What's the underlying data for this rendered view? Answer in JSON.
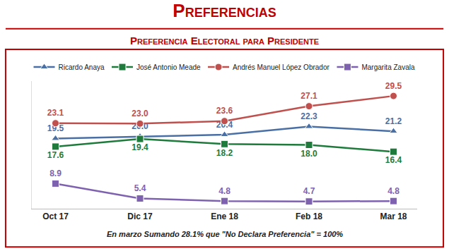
{
  "chart_data": {
    "type": "line",
    "title": "Preferencias",
    "subtitle": "Preferencia Electoral para Presidente",
    "categories": [
      "Oct 17",
      "Dic 17",
      "Ene 18",
      "Feb 18",
      "Mar 18"
    ],
    "series": [
      {
        "name": "Ricardo Anaya",
        "color": "#4a6fa5",
        "marker": "triangle-up",
        "line_style": "solid",
        "values": [
          19.5,
          20.0,
          20.4,
          22.3,
          21.2
        ],
        "value_labels": [
          "19.5",
          "20.0",
          "20.4",
          "22.3",
          "21.2"
        ]
      },
      {
        "name": "José Antonio Meade",
        "color": "#1e7b3c",
        "marker": "square",
        "line_style": "solid",
        "values": [
          17.6,
          19.4,
          18.2,
          18.0,
          16.4
        ],
        "value_labels": [
          "17.6",
          "19.4",
          "18.2",
          "18.0",
          "16.4"
        ]
      },
      {
        "name": "Andrés Manuel López Obrador",
        "color": "#c0504d",
        "marker": "circle",
        "line_style": "solid",
        "values": [
          23.1,
          23.0,
          23.6,
          27.1,
          29.5
        ],
        "value_labels": [
          "23.1",
          "23.0",
          "23.6",
          "27.1",
          "29.5"
        ]
      },
      {
        "name": "Margarita Zavala",
        "color": "#7e62b0",
        "marker": "square",
        "line_style": "solid",
        "values": [
          8.9,
          5.4,
          4.8,
          4.7,
          4.8
        ],
        "value_labels": [
          "8.9",
          "5.4",
          "4.8",
          "4.7",
          "4.8"
        ]
      }
    ],
    "ylim": [
      3,
      33
    ],
    "grid": false,
    "data_labels": true,
    "tick_labels": "x",
    "legend": "top",
    "annotations": [
      "En marzo Sumando 28.1% que \"No Declara Preferencia\" = 100%"
    ]
  }
}
